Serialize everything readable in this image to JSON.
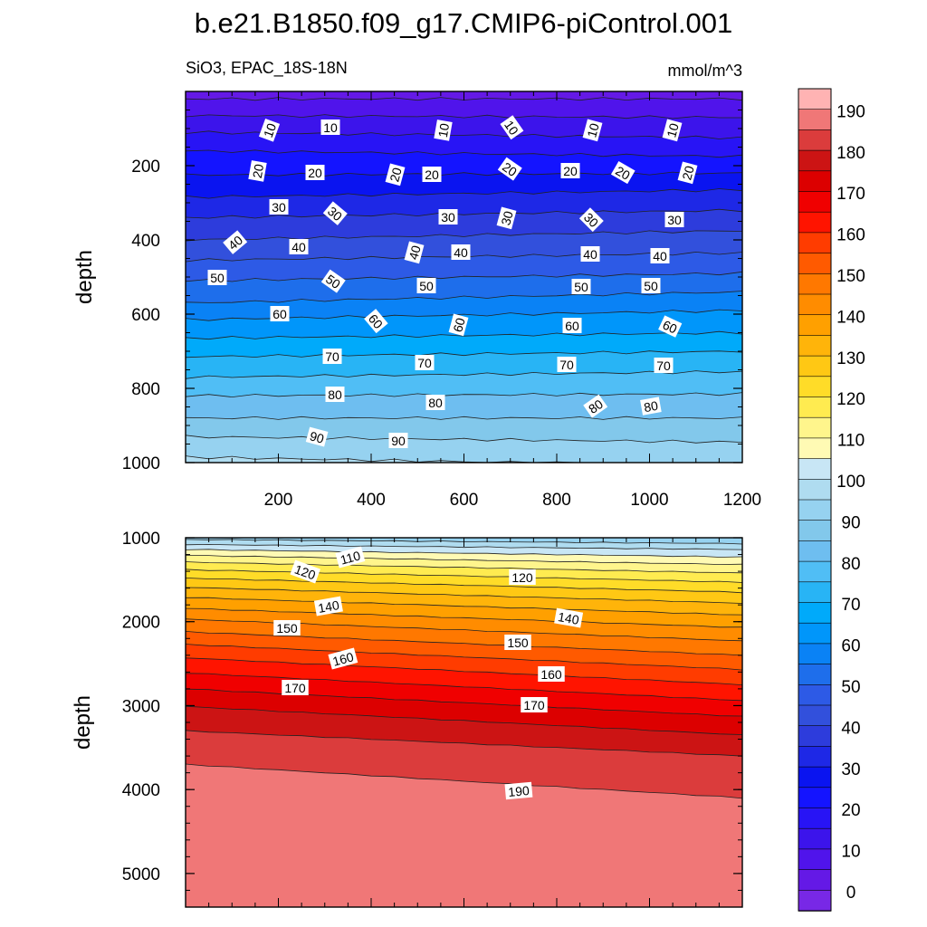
{
  "chart_data": [
    {
      "type": "contour",
      "panel": "upper",
      "title": "b.e21.B1850.f09_g17.CMIP6-piControl.001",
      "subtitle_left": "SiO3, EPAC_18S-18N",
      "subtitle_right": "mmol/m^3",
      "xlabel": "",
      "ylabel": "depth",
      "xlim": [
        0,
        1200
      ],
      "ylim": [
        0,
        1000
      ],
      "y_reversed": true,
      "x_ticks": [
        "200",
        "400",
        "600",
        "800",
        "1000",
        "1200"
      ],
      "y_ticks": [
        "200",
        "400",
        "600",
        "800",
        "1000"
      ],
      "contour_interval": 5,
      "levels_labeled": [
        "10",
        "20",
        "30",
        "40",
        "50",
        "60",
        "70",
        "80",
        "90"
      ],
      "contour_depths_at_left": [
        [
          5,
          20
        ],
        [
          10,
          65
        ],
        [
          15,
          110
        ],
        [
          20,
          160
        ],
        [
          25,
          225
        ],
        [
          30,
          285
        ],
        [
          35,
          340
        ],
        [
          40,
          400
        ],
        [
          45,
          455
        ],
        [
          50,
          510
        ],
        [
          55,
          570
        ],
        [
          60,
          615
        ],
        [
          65,
          665
        ],
        [
          70,
          715
        ],
        [
          75,
          770
        ],
        [
          80,
          820
        ],
        [
          85,
          880
        ],
        [
          90,
          930
        ],
        [
          95,
          985
        ]
      ],
      "contour_depths_at_right": [
        [
          5,
          20
        ],
        [
          10,
          70
        ],
        [
          15,
          125
        ],
        [
          20,
          175
        ],
        [
          25,
          220
        ],
        [
          30,
          265
        ],
        [
          35,
          320
        ],
        [
          40,
          375
        ],
        [
          45,
          435
        ],
        [
          50,
          490
        ],
        [
          55,
          540
        ],
        [
          60,
          590
        ],
        [
          65,
          650
        ],
        [
          70,
          700
        ],
        [
          75,
          755
        ],
        [
          80,
          815
        ],
        [
          85,
          880
        ],
        [
          90,
          945
        ],
        [
          95,
          1010
        ]
      ]
    },
    {
      "type": "contour",
      "panel": "lower",
      "xlabel": "",
      "ylabel": "depth",
      "xlim": [
        0,
        1200
      ],
      "ylim": [
        1000,
        5400
      ],
      "y_reversed": true,
      "y_ticks": [
        "1000",
        "2000",
        "3000",
        "4000",
        "5000"
      ],
      "contour_interval": 5,
      "levels_labeled": [
        "110",
        "120",
        "140",
        "150",
        "160",
        "170",
        "190"
      ],
      "contour_depths_at_left": [
        [
          95,
          1020
        ],
        [
          100,
          1080
        ],
        [
          105,
          1140
        ],
        [
          110,
          1210
        ],
        [
          115,
          1290
        ],
        [
          120,
          1380
        ],
        [
          125,
          1480
        ],
        [
          130,
          1590
        ],
        [
          135,
          1710
        ],
        [
          140,
          1840
        ],
        [
          145,
          1970
        ],
        [
          150,
          2120
        ],
        [
          155,
          2270
        ],
        [
          160,
          2430
        ],
        [
          165,
          2610
        ],
        [
          170,
          2800
        ],
        [
          175,
          3010
        ],
        [
          180,
          3300
        ],
        [
          185,
          3700
        ]
      ],
      "contour_depths_at_right": [
        [
          95,
          1070
        ],
        [
          100,
          1140
        ],
        [
          105,
          1230
        ],
        [
          110,
          1320
        ],
        [
          115,
          1420
        ],
        [
          120,
          1530
        ],
        [
          125,
          1650
        ],
        [
          130,
          1780
        ],
        [
          135,
          1920
        ],
        [
          140,
          2070
        ],
        [
          145,
          2230
        ],
        [
          150,
          2400
        ],
        [
          155,
          2570
        ],
        [
          160,
          2750
        ],
        [
          165,
          2940
        ],
        [
          170,
          3130
        ],
        [
          175,
          3350
        ],
        [
          180,
          3600
        ],
        [
          185,
          4100
        ]
      ]
    }
  ],
  "colorbar": {
    "labels": [
      "190",
      "180",
      "170",
      "160",
      "150",
      "140",
      "130",
      "120",
      "110",
      "100",
      "90",
      "80",
      "70",
      "60",
      "50",
      "40",
      "30",
      "20",
      "10",
      "0"
    ],
    "colors": [
      "#FFB3B3",
      "#F07777",
      "#DB3C3C",
      "#CC1414",
      "#DC0000",
      "#F00000",
      "#FF1400",
      "#FF3C00",
      "#FF5A00",
      "#FF7800",
      "#FF8C00",
      "#FFA000",
      "#FFB40A",
      "#FFC814",
      "#FFDC28",
      "#FFEB50",
      "#FFF58C",
      "#FFFAB4",
      "#C8E6F5",
      "#AFDCF0",
      "#96D2F0",
      "#82C8EB",
      "#6EBEF0",
      "#50BEF5",
      "#28B4F5",
      "#00AAFA",
      "#0096FA",
      "#0A82F5",
      "#1E6EEB",
      "#2D5AE6",
      "#3250DC",
      "#2D3CDC",
      "#1E28E6",
      "#0A14F0",
      "#1414FF",
      "#2814F5",
      "#3C14EB",
      "#5014EB",
      "#6419E6",
      "#7828E6"
    ]
  },
  "labels_upper": [
    {
      "text": "10",
      "x": 93,
      "y": 43,
      "rot": -70
    },
    {
      "text": "10",
      "x": 160,
      "y": 40,
      "rot": 0
    },
    {
      "text": "10",
      "x": 285,
      "y": 43,
      "rot": -80
    },
    {
      "text": "10",
      "x": 360,
      "y": 40,
      "rot": 55
    },
    {
      "text": "10",
      "x": 450,
      "y": 43,
      "rot": -75
    },
    {
      "text": "10",
      "x": 538,
      "y": 43,
      "rot": -75
    },
    {
      "text": "20",
      "x": 80,
      "y": 88,
      "rot": -80
    },
    {
      "text": "20",
      "x": 143,
      "y": 90,
      "rot": 0
    },
    {
      "text": "20",
      "x": 232,
      "y": 92,
      "rot": -75
    },
    {
      "text": "20",
      "x": 272,
      "y": 92,
      "rot": 0
    },
    {
      "text": "20",
      "x": 358,
      "y": 86,
      "rot": 35
    },
    {
      "text": "20",
      "x": 425,
      "y": 88,
      "rot": 0
    },
    {
      "text": "20",
      "x": 483,
      "y": 90,
      "rot": 30
    },
    {
      "text": "20",
      "x": 555,
      "y": 90,
      "rot": -75
    },
    {
      "text": "30",
      "x": 103,
      "y": 128,
      "rot": 0
    },
    {
      "text": "30",
      "x": 165,
      "y": 135,
      "rot": 40
    },
    {
      "text": "30",
      "x": 290,
      "y": 139,
      "rot": 0
    },
    {
      "text": "30",
      "x": 355,
      "y": 140,
      "rot": -75
    },
    {
      "text": "30",
      "x": 448,
      "y": 142,
      "rot": 45
    },
    {
      "text": "30",
      "x": 540,
      "y": 142,
      "rot": 0
    },
    {
      "text": "40",
      "x": 55,
      "y": 167,
      "rot": -40
    },
    {
      "text": "40",
      "x": 125,
      "y": 172,
      "rot": 0
    },
    {
      "text": "40",
      "x": 253,
      "y": 178,
      "rot": -75
    },
    {
      "text": "40",
      "x": 304,
      "y": 178,
      "rot": 0
    },
    {
      "text": "40",
      "x": 447,
      "y": 180,
      "rot": 0
    },
    {
      "text": "40",
      "x": 524,
      "y": 182,
      "rot": 0
    },
    {
      "text": "50",
      "x": 35,
      "y": 206,
      "rot": 0
    },
    {
      "text": "50",
      "x": 163,
      "y": 210,
      "rot": 35
    },
    {
      "text": "50",
      "x": 266,
      "y": 215,
      "rot": 0
    },
    {
      "text": "50",
      "x": 437,
      "y": 216,
      "rot": 0
    },
    {
      "text": "50",
      "x": 514,
      "y": 215,
      "rot": 0
    },
    {
      "text": "60",
      "x": 104,
      "y": 246,
      "rot": 0
    },
    {
      "text": "60",
      "x": 210,
      "y": 254,
      "rot": 50
    },
    {
      "text": "60",
      "x": 302,
      "y": 258,
      "rot": -75
    },
    {
      "text": "60",
      "x": 427,
      "y": 259,
      "rot": 0
    },
    {
      "text": "60",
      "x": 535,
      "y": 260,
      "rot": 25
    },
    {
      "text": "70",
      "x": 162,
      "y": 293,
      "rot": 0
    },
    {
      "text": "70",
      "x": 264,
      "y": 300,
      "rot": 0
    },
    {
      "text": "70",
      "x": 421,
      "y": 302,
      "rot": 0
    },
    {
      "text": "70",
      "x": 528,
      "y": 303,
      "rot": 0
    },
    {
      "text": "80",
      "x": 165,
      "y": 335,
      "rot": 0
    },
    {
      "text": "80",
      "x": 276,
      "y": 344,
      "rot": 0
    },
    {
      "text": "80",
      "x": 453,
      "y": 348,
      "rot": -35
    },
    {
      "text": "80",
      "x": 514,
      "y": 348,
      "rot": -10
    },
    {
      "text": "90",
      "x": 145,
      "y": 382,
      "rot": 15
    },
    {
      "text": "90",
      "x": 235,
      "y": 386,
      "rot": 0
    }
  ],
  "labels_lower": [
    {
      "text": "110",
      "x": 182,
      "y": 22,
      "rot": -15
    },
    {
      "text": "120",
      "x": 132,
      "y": 38,
      "rot": 20
    },
    {
      "text": "120",
      "x": 372,
      "y": 44,
      "rot": 0
    },
    {
      "text": "140",
      "x": 158,
      "y": 76,
      "rot": -10
    },
    {
      "text": "140",
      "x": 423,
      "y": 89,
      "rot": 10
    },
    {
      "text": "150",
      "x": 112,
      "y": 100,
      "rot": 0
    },
    {
      "text": "150",
      "x": 367,
      "y": 116,
      "rot": 0
    },
    {
      "text": "160",
      "x": 174,
      "y": 134,
      "rot": -15
    },
    {
      "text": "160",
      "x": 404,
      "y": 151,
      "rot": 0
    },
    {
      "text": "170",
      "x": 121,
      "y": 166,
      "rot": 0
    },
    {
      "text": "170",
      "x": 385,
      "y": 185,
      "rot": 0
    },
    {
      "text": "190",
      "x": 368,
      "y": 280,
      "rot": -5
    }
  ]
}
